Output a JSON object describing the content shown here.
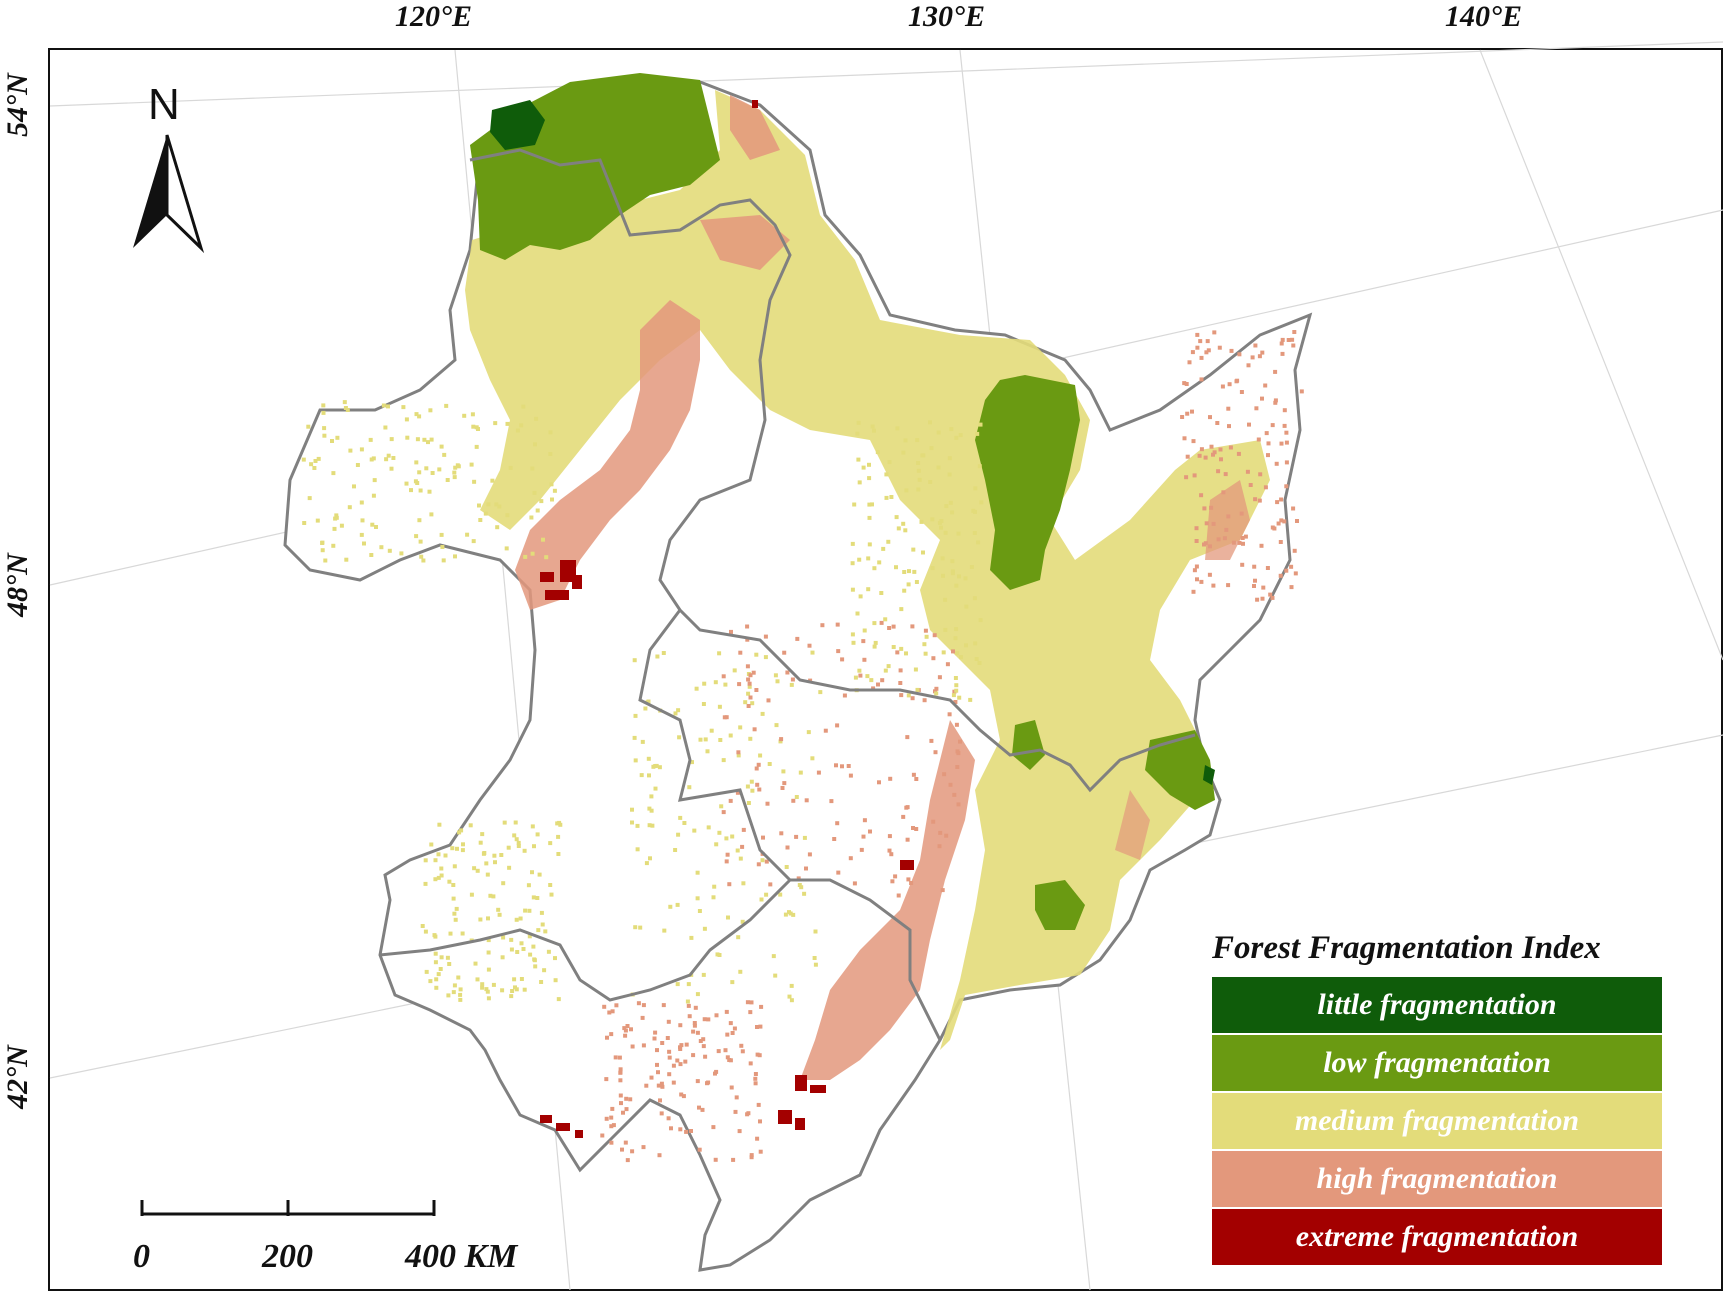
{
  "map": {
    "longitude_labels": [
      "120°E",
      "130°E",
      "140°E"
    ],
    "latitude_labels": [
      "54°N",
      "48°N",
      "42°N"
    ],
    "north_arrow_label": "N",
    "scale_bar": {
      "ticks": [
        "0",
        "200",
        "400 KM"
      ]
    }
  },
  "legend": {
    "title": "Forest Fragmentation Index",
    "items": [
      {
        "label": "little fragmentation",
        "color": "#0f5c0a"
      },
      {
        "label": "low fragmentation",
        "color": "#6a9a12"
      },
      {
        "label": "medium fragmentation",
        "color": "#e3dc7a"
      },
      {
        "label": "high fragmentation",
        "color": "#e3987c"
      },
      {
        "label": "extreme fragmentation",
        "color": "#a30000"
      }
    ]
  },
  "colors": {
    "boundary": "#808080",
    "graticule": "#d8d8d8"
  }
}
